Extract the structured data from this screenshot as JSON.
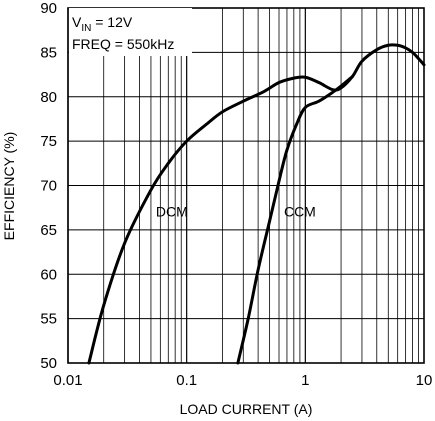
{
  "chart_data": {
    "type": "line",
    "title": "",
    "xlabel": "LOAD CURRENT (A)",
    "ylabel": "EFFICIENCY (%)",
    "x_scale": "log",
    "xlim": [
      0.01,
      10
    ],
    "ylim": [
      50,
      90
    ],
    "x_ticks": [
      0.01,
      0.1,
      1,
      10
    ],
    "x_tick_labels": [
      "0.01",
      "0.1",
      "1",
      "10"
    ],
    "y_ticks": [
      50,
      55,
      60,
      65,
      70,
      75,
      80,
      85,
      90
    ],
    "y_tick_labels": [
      "50",
      "55",
      "60",
      "65",
      "70",
      "75",
      "80",
      "85",
      "90"
    ],
    "grid": true,
    "annotations": {
      "vin_label": "V",
      "vin_sub": "IN",
      "vin_value": " = 12V",
      "freq": "FREQ = 550kHz"
    },
    "series": [
      {
        "name": "DCM",
        "x": [
          0.015,
          0.02,
          0.03,
          0.05,
          0.07,
          0.1,
          0.15,
          0.2,
          0.3,
          0.45,
          0.6,
          0.8,
          1.0,
          1.3,
          1.7,
          2.0,
          2.5,
          3.0,
          4.0,
          5.0,
          6.0,
          7.0,
          8.0,
          9.0,
          10.0
        ],
        "y": [
          50.0,
          56.5,
          63.5,
          69.5,
          72.5,
          75.0,
          77.0,
          78.3,
          79.5,
          80.6,
          81.6,
          82.1,
          82.2,
          81.6,
          80.8,
          81.0,
          82.3,
          84.0,
          85.3,
          85.8,
          85.8,
          85.5,
          85.0,
          84.3,
          83.6
        ]
      },
      {
        "name": "CCM",
        "x": [
          0.27,
          0.33,
          0.4,
          0.5,
          0.6,
          0.7,
          0.85,
          1.0,
          1.3,
          1.7,
          2.0,
          2.5
        ],
        "y": [
          50.0,
          55.0,
          60.5,
          66.0,
          70.5,
          74.0,
          77.0,
          78.8,
          79.5,
          80.5,
          81.2,
          82.3
        ]
      }
    ]
  }
}
